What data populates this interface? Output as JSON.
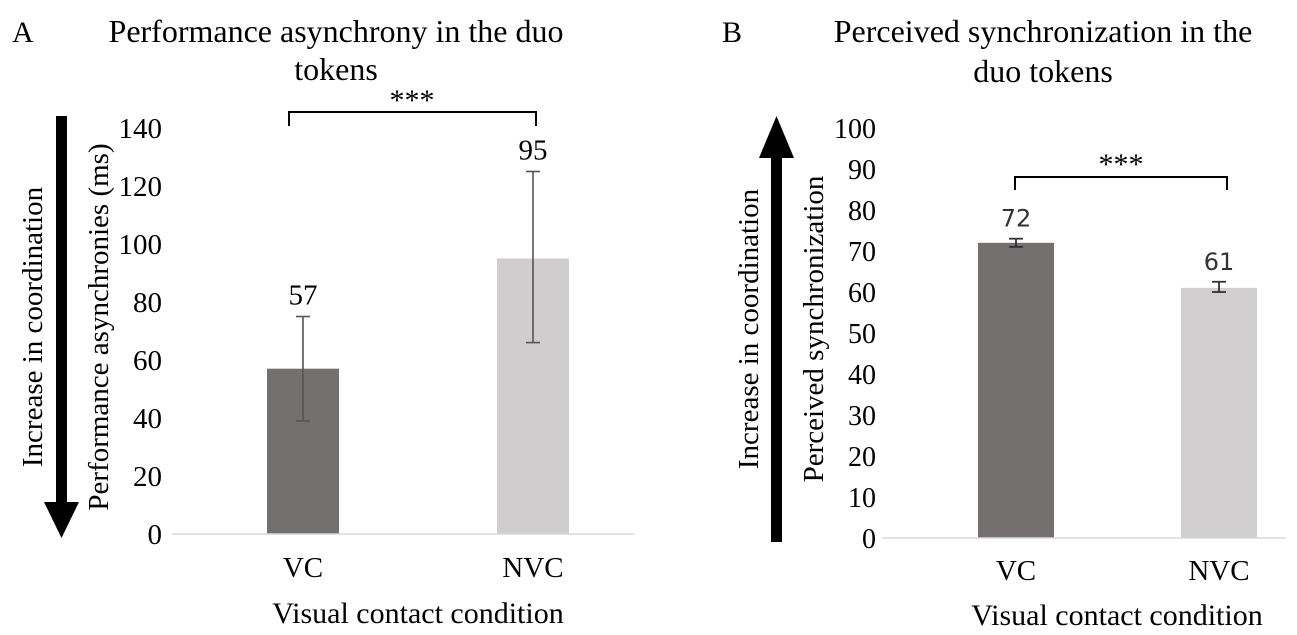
{
  "panels": [
    {
      "letter": "A",
      "title_lines": [
        "Performance asynchrony in the duo",
        "tokens"
      ],
      "arrow_label": "Increase in coordination",
      "arrow_direction": "down",
      "significance": "***",
      "chart_data": {
        "type": "bar",
        "title": "Performance asynchrony in the duo tokens",
        "xlabel": "Visual contact condition",
        "ylabel": "Performance asynchronies (ms)",
        "categories": [
          "VC",
          "NVC"
        ],
        "values": [
          57,
          95
        ],
        "error_low": [
          39,
          66
        ],
        "error_high": [
          75,
          125
        ],
        "data_labels": [
          "57",
          "95"
        ],
        "colors": [
          "#747070",
          "#cfcdcd"
        ],
        "ylim": [
          0,
          140
        ],
        "yticks": [
          "0",
          "20",
          "40",
          "60",
          "80",
          "100",
          "120",
          "140"
        ],
        "grid": false,
        "significance_pair": [
          "VC",
          "NVC"
        ]
      }
    },
    {
      "letter": "B",
      "title_lines": [
        "Perceived synchronization in the",
        "duo tokens"
      ],
      "arrow_label": "Increase in coordination",
      "arrow_direction": "up",
      "significance": "***",
      "chart_data": {
        "type": "bar",
        "title": "Perceived synchronization in the duo tokens",
        "xlabel": "Visual contact condition",
        "ylabel": "Perceived synchronization",
        "categories": [
          "VC",
          "NVC"
        ],
        "values": [
          72,
          61
        ],
        "error_low": [
          71,
          60
        ],
        "error_high": [
          73,
          62.5
        ],
        "data_labels": [
          "72",
          "61"
        ],
        "colors": [
          "#747070",
          "#d0cece"
        ],
        "ylim": [
          0,
          100
        ],
        "yticks": [
          "0",
          "10",
          "20",
          "30",
          "40",
          "50",
          "60",
          "70",
          "80",
          "90",
          "100"
        ],
        "grid": false,
        "significance_pair": [
          "VC",
          "NVC"
        ]
      }
    }
  ]
}
